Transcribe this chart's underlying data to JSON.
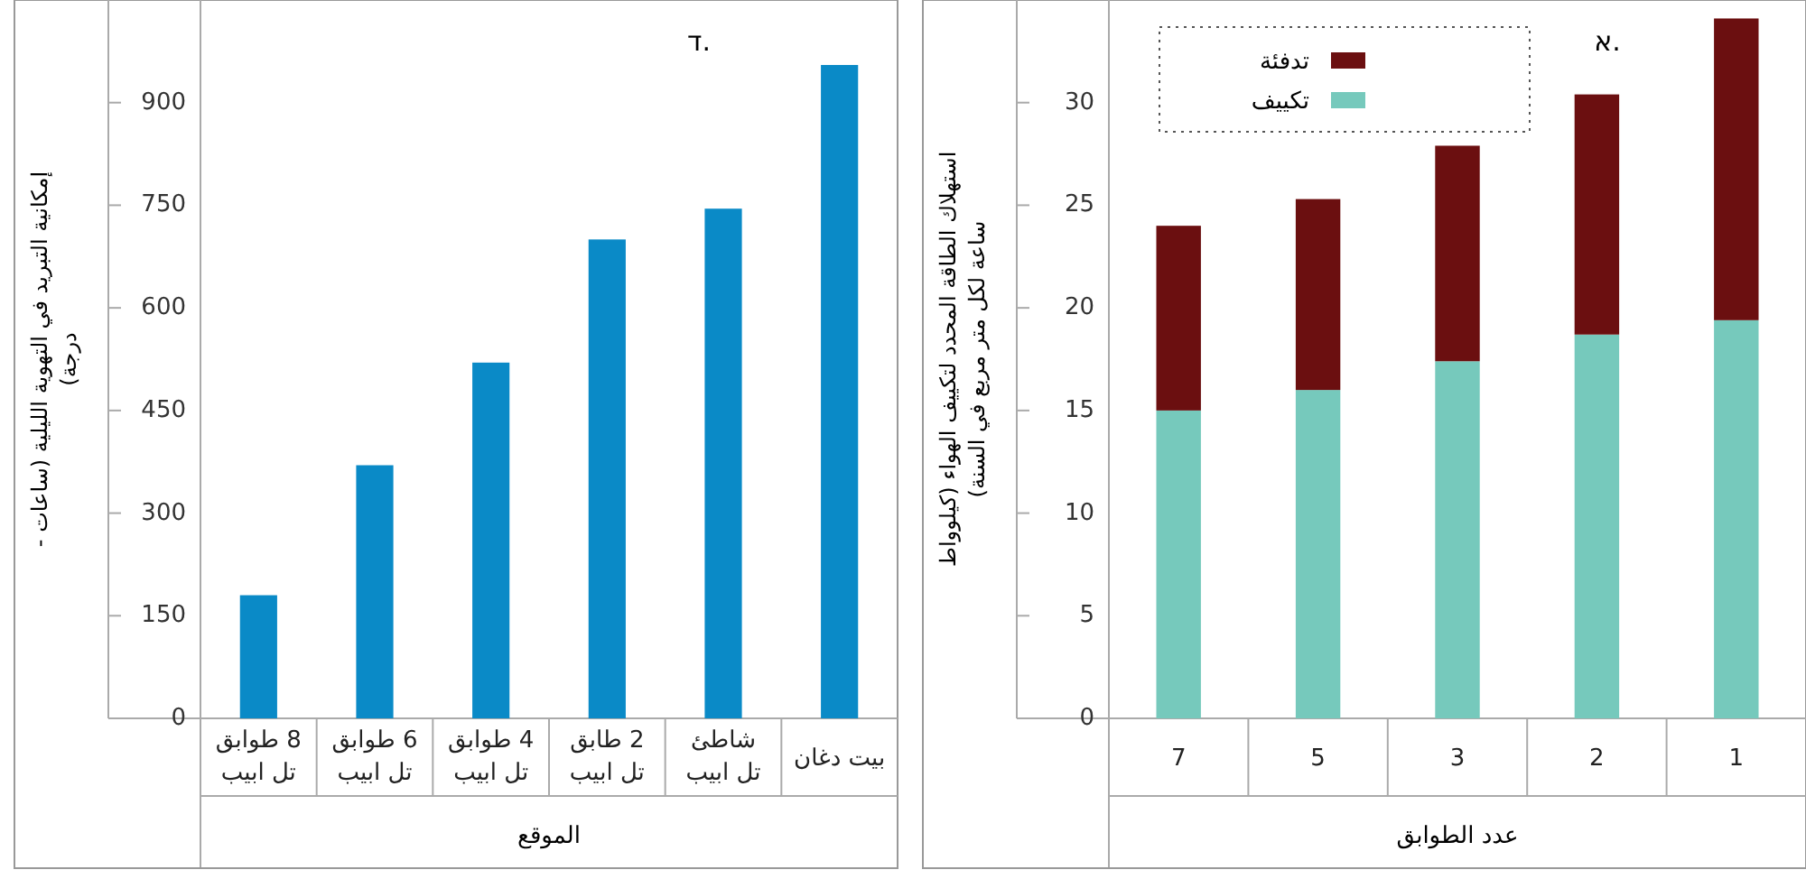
{
  "chart_data": [
    {
      "type": "bar",
      "title": "א.",
      "stacked": true,
      "xlabel": "عدد الطوابق",
      "ylabel": "استهلاك الطاقة المحدد لتكييف الهواء (كيلوواط ساعة لكل متر مربع في السنة)",
      "categories": [
        "7",
        "5",
        "3",
        "2",
        "1"
      ],
      "series": [
        {
          "name": "تكييف",
          "color": "#76c9bc",
          "values": [
            15,
            16,
            17.4,
            18.7,
            19.4
          ]
        },
        {
          "name": "تدفئة",
          "color": "#6b0f10",
          "values": [
            9,
            9.3,
            10.5,
            11.7,
            14.7
          ]
        }
      ],
      "ylim": [
        0,
        35
      ],
      "yticks": [
        0,
        5,
        10,
        15,
        20,
        25,
        30
      ],
      "legend": "top left"
    },
    {
      "type": "bar",
      "title": "ד.",
      "xlabel": "الموقع",
      "ylabel": "إمكانية التبريد في التهوية الليلية (ساعات - درجة)",
      "categories": [
        "8 طوابق\nتل ابيب",
        "6 طوابق\nتل ابيب",
        "4 طوابق\nتل ابيب",
        "2 طابق\nتل ابيب",
        "شاطئ\nتل ابيب",
        "بيت دغان"
      ],
      "series": [
        {
          "color": "#0a8ac7",
          "values": [
            180,
            370,
            520,
            700,
            745,
            955
          ]
        }
      ],
      "ylim": [
        0,
        1050
      ],
      "yticks": [
        0,
        150,
        300,
        450,
        600,
        750,
        900
      ]
    }
  ]
}
